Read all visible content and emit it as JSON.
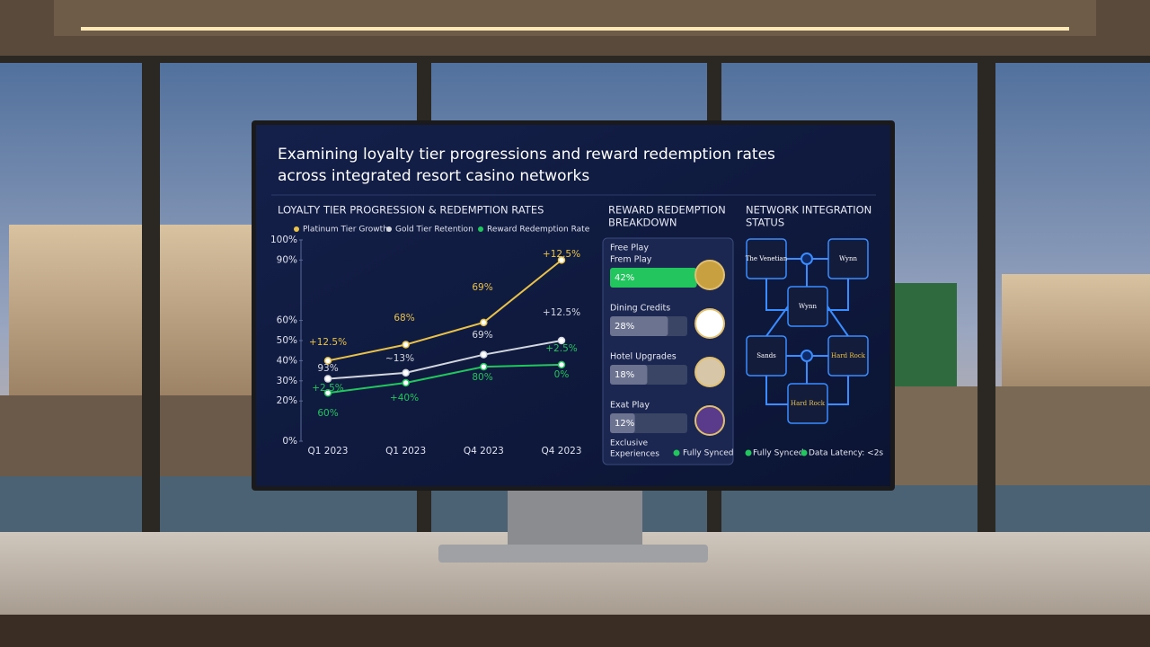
{
  "screen": {
    "title_lines": [
      "Examining loyalty tier progressions and reward redemption rates",
      "across integrated resort casino networks"
    ]
  },
  "chart_data": {
    "type": "line",
    "title": "LOYALTY TIER PROGRESSION & REDEMPTION RATES",
    "categories": [
      "Q1 2023",
      "Q1 2023",
      "Q4 2023",
      "Q4 2023"
    ],
    "series": [
      {
        "name": "Platinum Tier Growth",
        "color": "#e8c24a",
        "values": [
          40,
          48,
          59,
          90
        ]
      },
      {
        "name": "Gold Tier Retention",
        "color": "#d3d7de",
        "values": [
          31,
          34,
          43,
          50
        ]
      },
      {
        "name": "Reward Redemption Rate",
        "color": "#22c55e",
        "values": [
          24,
          29,
          37,
          38
        ]
      }
    ],
    "ylim": [
      0,
      100
    ],
    "yticks": [
      {
        "value": 0,
        "label": "0%"
      },
      {
        "value": 20,
        "label": "20%"
      },
      {
        "value": 30,
        "label": "30%"
      },
      {
        "value": 40,
        "label": "40%"
      },
      {
        "value": 50,
        "label": "50%"
      },
      {
        "value": 60,
        "label": "60%"
      },
      {
        "value": 90,
        "label": "90%"
      },
      {
        "value": 100,
        "label": "100%"
      }
    ],
    "annotations": [
      "+12.5%",
      "69%",
      "68%",
      "+12.5%",
      "+12.5%",
      "69%",
      "~13%",
      "93%",
      "+2.5%",
      "0%",
      "80%",
      "+40%",
      "+2.5%",
      "60%"
    ]
  },
  "redemption": {
    "title_lines": [
      "REWARD REDEMPTION",
      "BREAKDOWN"
    ],
    "items": [
      {
        "label_lines": [
          "Free Play",
          "Frem Play"
        ],
        "value": 42,
        "value_label": "42%"
      },
      {
        "label_lines": [
          "Dining Credits"
        ],
        "value": 28,
        "value_label": "28%"
      },
      {
        "label_lines": [
          "Hotel Upgrades"
        ],
        "value": 18,
        "value_label": "18%"
      },
      {
        "label_lines": [
          "Exat Play"
        ],
        "value": 12,
        "value_label": "12%"
      }
    ],
    "footer_lines": [
      "Exclusive",
      "Experiences"
    ],
    "status": "Fully Synced"
  },
  "network": {
    "title_lines": [
      "NETWORK INTEGRATION",
      "STATUS"
    ],
    "nodes": [
      "The Venetian",
      "Wynn",
      "Wynn",
      "Sands",
      "Hard Rock",
      "Hard Rock"
    ],
    "status": [
      "Fully Synced",
      "Data Latency: <2s"
    ]
  }
}
